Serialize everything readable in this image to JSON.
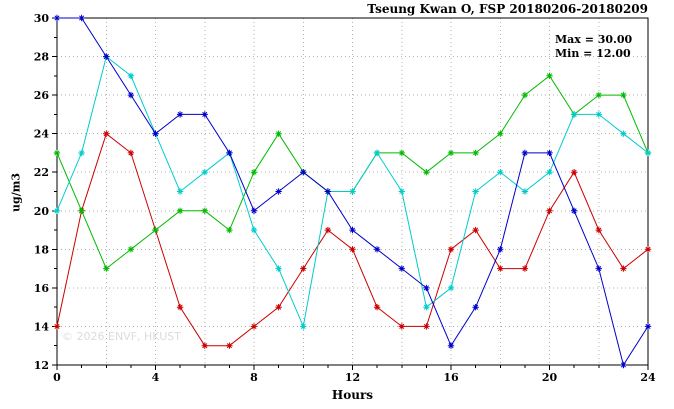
{
  "figure": {
    "title": "Tseung Kwan O, FSP 20180206-20180209",
    "annotation": {
      "max": "Max = 30.00",
      "min": "Min = 12.00"
    },
    "watermark": "© 2026 ENVF, HKUST"
  },
  "chart_data": {
    "type": "line",
    "title": "Tseung Kwan O, FSP 20180206-20180209",
    "xlabel": "Hours",
    "ylabel": "ug/m3",
    "xlim": [
      0,
      24
    ],
    "ylim": [
      12,
      30
    ],
    "xticks": [
      0,
      4,
      8,
      12,
      16,
      20,
      24
    ],
    "yticks": [
      12,
      14,
      16,
      18,
      20,
      22,
      24,
      26,
      28,
      30
    ],
    "grid_x": [
      0,
      2,
      4,
      6,
      8,
      10,
      12,
      14,
      16,
      18,
      20,
      22,
      24
    ],
    "grid_y": [
      12,
      14,
      16,
      18,
      20,
      22,
      24,
      26,
      28,
      30
    ],
    "grid": "dotted",
    "legend": "none",
    "annotations": [
      "Max = 30.00",
      "Min = 12.00"
    ],
    "x": [
      0,
      1,
      2,
      3,
      4,
      5,
      6,
      7,
      8,
      9,
      10,
      11,
      12,
      13,
      14,
      15,
      16,
      17,
      18,
      19,
      20,
      21,
      22,
      23,
      24
    ],
    "series": [
      {
        "name": "red",
        "color": "#cc0000",
        "values": [
          14,
          20,
          24,
          23,
          19,
          15,
          13,
          13,
          14,
          15,
          17,
          19,
          18,
          15,
          14,
          14,
          18,
          19,
          17,
          17,
          20,
          22,
          19,
          17,
          18
        ]
      },
      {
        "name": "green",
        "color": "#00bb00",
        "values": [
          23,
          20,
          17,
          18,
          19,
          20,
          20,
          19,
          22,
          24,
          22,
          21,
          21,
          23,
          23,
          22,
          23,
          23,
          24,
          26,
          27,
          25,
          26,
          26,
          23
        ]
      },
      {
        "name": "cyan",
        "color": "#00cccc",
        "values": [
          20,
          23,
          28,
          27,
          24,
          21,
          22,
          23,
          19,
          17,
          14,
          21,
          21,
          23,
          21,
          15,
          16,
          21,
          22,
          21,
          22,
          25,
          25,
          24,
          23
        ]
      },
      {
        "name": "blue",
        "color": "#0000cc",
        "values": [
          30,
          30,
          28,
          26,
          24,
          25,
          25,
          23,
          20,
          21,
          22,
          21,
          19,
          18,
          17,
          16,
          13,
          15,
          18,
          23,
          23,
          20,
          17,
          12,
          14
        ]
      }
    ]
  }
}
